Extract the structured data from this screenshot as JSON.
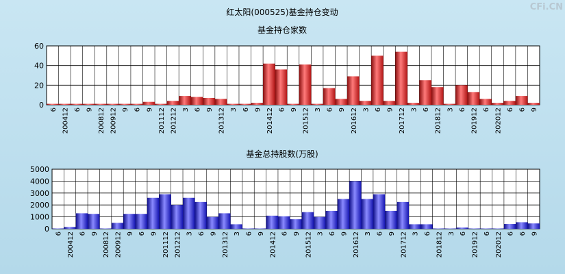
{
  "page_title": "红太阳(000525)基金持仓变动",
  "watermark": "CFi.CN",
  "chart_data": [
    {
      "type": "bar",
      "title": "基金持仓家数",
      "categories": [
        "6",
        "200412",
        "6",
        "9",
        "200812",
        "200912",
        "9",
        "6",
        "9",
        "201112",
        "201212",
        "3",
        "6",
        "9",
        "201312",
        "3",
        "6",
        "9",
        "201412",
        "6",
        "9",
        "201512",
        "3",
        "6",
        "9",
        "201612",
        "3",
        "6",
        "9",
        "201712",
        "3",
        "6",
        "201812",
        "3",
        "6",
        "201912",
        "6",
        "202012",
        "6",
        "6",
        "9"
      ],
      "values": [
        1,
        1,
        1,
        1,
        1,
        1,
        1,
        1,
        3,
        1,
        4,
        9,
        8,
        7,
        6,
        1,
        1,
        2,
        42,
        36,
        1,
        41,
        1,
        17,
        6,
        29,
        4,
        50,
        4,
        54,
        2,
        25,
        18,
        1,
        20,
        13,
        6,
        2,
        4,
        9,
        2
      ],
      "ylim": [
        0,
        60
      ],
      "yticks": [
        0,
        20,
        40,
        60
      ],
      "color": "#e02020",
      "grid": true
    },
    {
      "type": "bar",
      "title": "基金总持股数(万股)",
      "categories": [
        "6",
        "200412",
        "6",
        "9",
        "200812",
        "200912",
        "9",
        "6",
        "9",
        "201112",
        "201212",
        "3",
        "6",
        "9",
        "201312",
        "3",
        "6",
        "9",
        "201412",
        "6",
        "9",
        "201512",
        "3",
        "6",
        "9",
        "201612",
        "3",
        "6",
        "9",
        "201712",
        "3",
        "6",
        "201812",
        "3",
        "6",
        "201912",
        "6",
        "202012",
        "6",
        "6",
        "9"
      ],
      "values": [
        30,
        150,
        1300,
        1250,
        30,
        500,
        1250,
        1250,
        2600,
        2900,
        2000,
        2600,
        2250,
        1000,
        1300,
        380,
        30,
        30,
        1100,
        1050,
        800,
        1400,
        1000,
        1500,
        2500,
        4000,
        2500,
        2900,
        1500,
        2250,
        380,
        380,
        30,
        30,
        100,
        30,
        30,
        30,
        400,
        550,
        450
      ],
      "ylim": [
        0,
        5000
      ],
      "yticks": [
        0,
        1000,
        2000,
        3000,
        4000,
        5000
      ],
      "color": "#2020e0",
      "grid": true
    }
  ]
}
